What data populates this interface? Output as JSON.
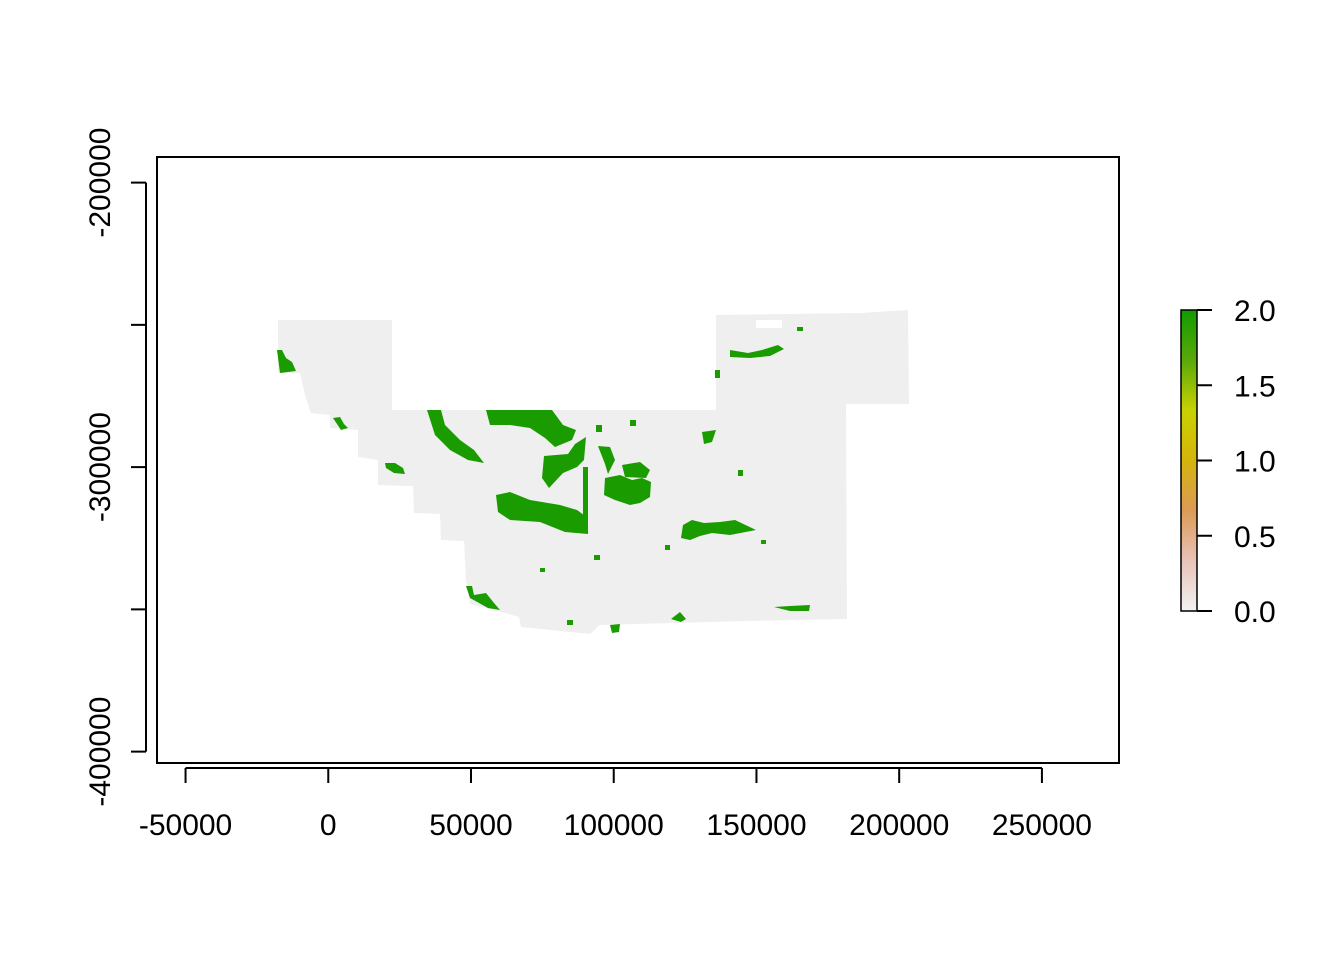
{
  "chart_data": {
    "type": "heatmap",
    "title": "",
    "xlabel": "",
    "ylabel": "",
    "xlim": [
      -60000,
      277000
    ],
    "ylim": [
      -404000,
      -191000
    ],
    "x_ticks": [
      -50000,
      0,
      50000,
      100000,
      150000,
      200000,
      250000
    ],
    "x_tick_labels": [
      "-50000",
      "0",
      "50000",
      "100000",
      "150000",
      "200000",
      "250000"
    ],
    "y_ticks": [
      -200000,
      -300000,
      -400000
    ],
    "y_tick_labels": [
      "-200000",
      "-300000",
      "-400000"
    ],
    "y_minor_ticks": [
      -250000,
      -350000
    ],
    "grid": false,
    "legend": {
      "placement": "right",
      "type": "colorbar",
      "range": [
        0,
        2
      ],
      "tick_values": [
        0,
        0.5,
        1,
        1.5,
        2
      ],
      "tick_labels": [
        "0.0",
        "0.5",
        "1.0",
        "1.5",
        "2.0"
      ],
      "colors": [
        "#f2f2f2",
        "#e8c3b9",
        "#dc9a56",
        "#d6b40c",
        "#c8d200",
        "#5aa90a",
        "#109c00"
      ]
    },
    "colors": {
      "background_value_0": "#efefef",
      "value_2": "#1a9c00"
    }
  }
}
